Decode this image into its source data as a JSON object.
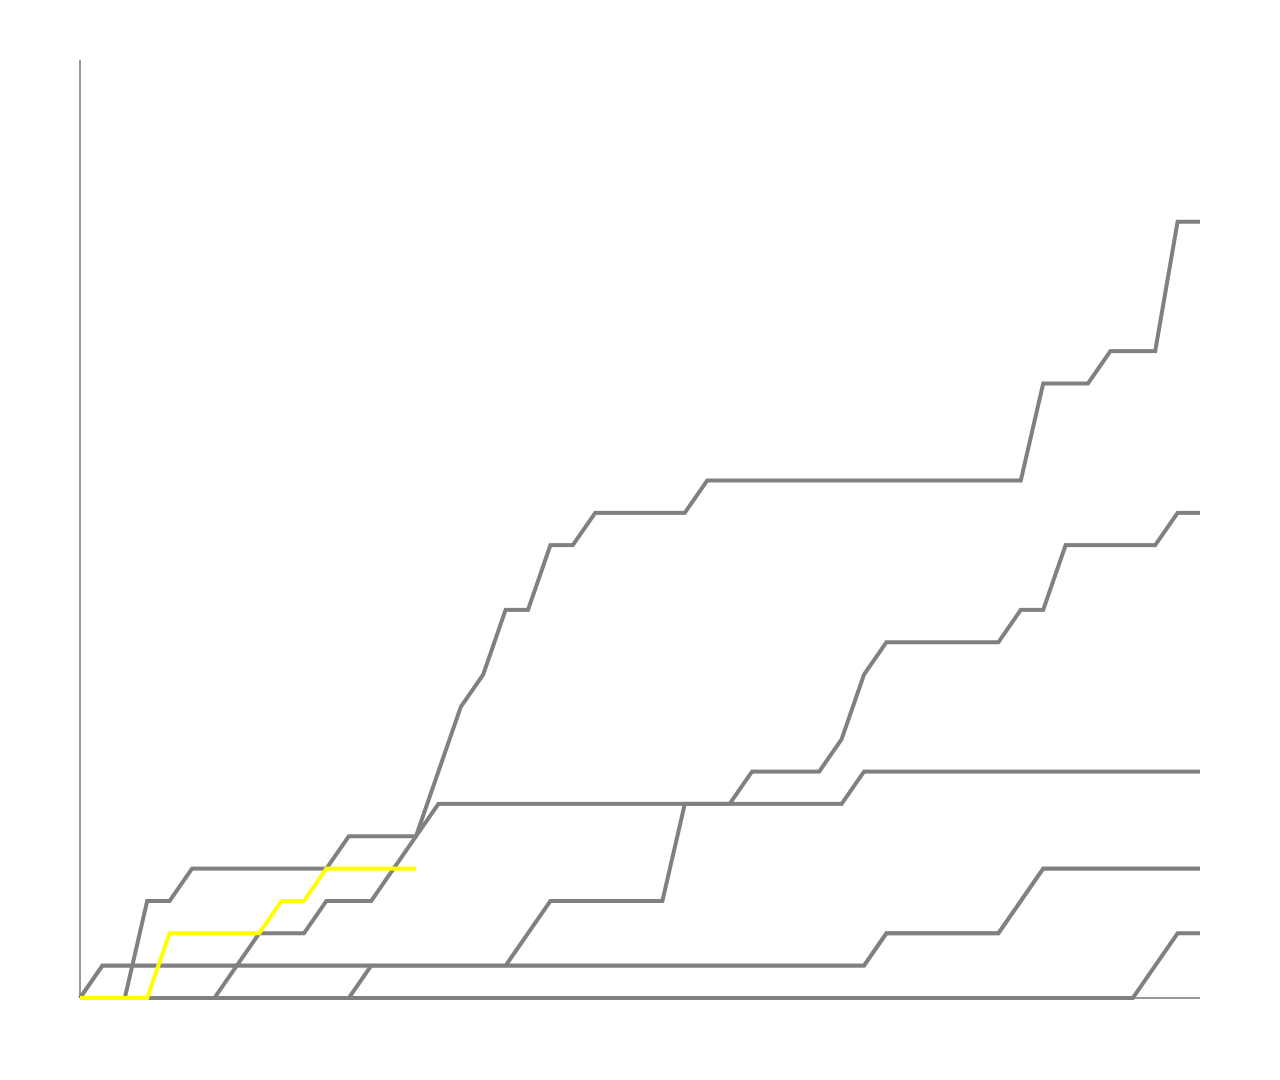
{
  "chart_data": {
    "type": "line",
    "categories": [
      null,
      null,
      null,
      null,
      null,
      null,
      null,
      null,
      null,
      null,
      null,
      null,
      null,
      null,
      null,
      null,
      null,
      null,
      null,
      null,
      null,
      null,
      null,
      null,
      null,
      null,
      null,
      null,
      null,
      null,
      null,
      null,
      null,
      null,
      null,
      null,
      null,
      null,
      null,
      null,
      null,
      null,
      null,
      null,
      null,
      null,
      null,
      null,
      null,
      null,
      null
    ],
    "ylim": [
      0,
      29
    ],
    "series": [
      {
        "color": "#808080",
        "values": [
          0,
          0,
          0,
          3,
          3,
          4,
          4,
          4,
          4,
          4,
          4,
          4,
          5,
          5,
          5,
          5,
          7,
          9,
          10,
          12,
          12,
          14,
          14,
          15,
          15,
          15,
          15,
          15,
          16,
          16,
          16,
          16,
          16,
          16,
          16,
          16,
          16,
          16,
          16,
          16,
          16,
          16,
          16,
          19,
          19,
          19,
          20,
          20,
          20,
          24,
          24
        ]
      },
      {
        "color": "#808080",
        "values": [
          0,
          1,
          1,
          1,
          1,
          1,
          1,
          1,
          1,
          1,
          1,
          1,
          1,
          1,
          1,
          1,
          1,
          1,
          1,
          1,
          2,
          3,
          3,
          3,
          3,
          3,
          3,
          6,
          6,
          6,
          7,
          7,
          7,
          7,
          8,
          10,
          11,
          11,
          11,
          11,
          11,
          11,
          12,
          12,
          14,
          14,
          14,
          14,
          14,
          15,
          15
        ]
      },
      {
        "color": "#808080",
        "values": [
          0,
          0,
          0,
          0,
          0,
          0,
          0,
          1,
          2,
          2,
          2,
          3,
          3,
          3,
          4,
          5,
          6,
          6,
          6,
          6,
          6,
          6,
          6,
          6,
          6,
          6,
          6,
          6,
          6,
          6,
          6,
          6,
          6,
          6,
          6,
          7,
          7,
          7,
          7,
          7,
          7,
          7,
          7,
          7,
          7,
          7,
          7,
          7,
          7,
          7,
          7
        ]
      },
      {
        "color": "#808080",
        "values": [
          0,
          1,
          1,
          1,
          1,
          1,
          1,
          1,
          1,
          1,
          1,
          1,
          1,
          1,
          1,
          1,
          1,
          1,
          1,
          1,
          1,
          1,
          1,
          1,
          1,
          1,
          1,
          1,
          1,
          1,
          1,
          1,
          1,
          1,
          1,
          1,
          2,
          2,
          2,
          2,
          2,
          2,
          3,
          4,
          4,
          4,
          4,
          4,
          4,
          4,
          4
        ]
      },
      {
        "color": "#808080",
        "values": [
          0,
          0,
          0,
          0,
          0,
          0,
          0,
          0,
          0,
          0,
          0,
          0,
          0,
          1,
          1,
          1,
          1,
          1,
          1,
          1,
          1,
          1,
          1,
          1,
          1,
          1,
          1,
          1,
          1,
          1,
          1,
          1,
          1,
          1,
          1,
          1,
          2,
          2,
          2,
          2,
          2,
          2,
          3,
          4,
          4,
          4,
          4,
          4,
          4,
          4,
          4
        ]
      },
      {
        "color": "#808080",
        "values": [
          0,
          0,
          0,
          0,
          0,
          0,
          0,
          0,
          0,
          0,
          0,
          0,
          0,
          0,
          0,
          0,
          0,
          0,
          0,
          0,
          0,
          0,
          0,
          0,
          0,
          0,
          0,
          0,
          0,
          0,
          0,
          0,
          0,
          0,
          0,
          0,
          0,
          0,
          0,
          0,
          0,
          0,
          0,
          0,
          0,
          0,
          0,
          0,
          1,
          2,
          2
        ]
      },
      {
        "color": "#ffff00",
        "values": [
          0,
          0,
          0,
          0,
          2,
          2,
          2,
          2,
          2,
          3,
          3,
          4,
          4,
          4,
          4,
          4,
          null,
          null,
          null,
          null,
          null,
          null,
          null,
          null,
          null,
          null,
          null,
          null,
          null,
          null,
          null,
          null,
          null,
          null,
          null,
          null,
          null,
          null,
          null,
          null,
          null,
          null,
          null,
          null,
          null,
          null,
          null,
          null,
          null,
          null,
          null
        ]
      }
    ]
  }
}
